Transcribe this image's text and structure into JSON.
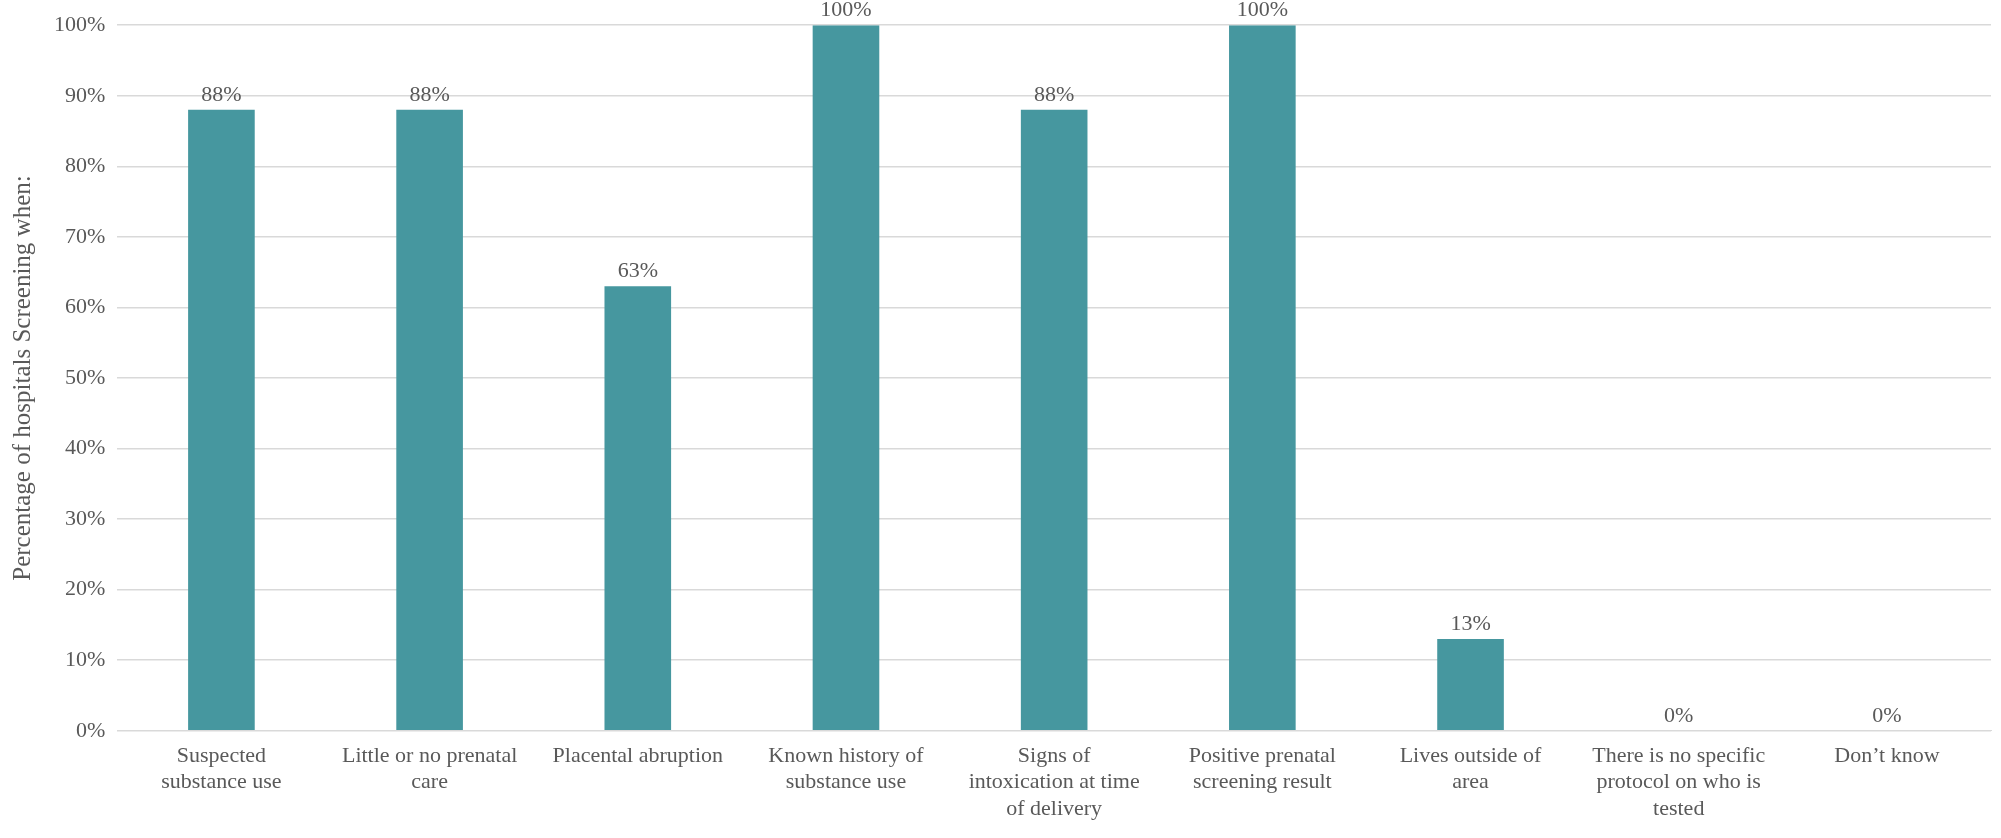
{
  "chart_data": {
    "type": "bar",
    "ylabel": "Percentage of hospitals Screening when:",
    "categories": [
      "Suspected substance use",
      "Little or no prenatal care",
      "Placental abruption",
      "Known history of substance use",
      "Signs of intoxication at time of delivery",
      "Positive prenatal screening result",
      "Lives outside of area",
      "There is no specific protocol on who is tested",
      "Don’t know"
    ],
    "values": [
      88,
      88,
      63,
      100,
      88,
      100,
      13,
      0,
      0
    ],
    "value_labels": [
      "88%",
      "88%",
      "63%",
      "100%",
      "88%",
      "100%",
      "13%",
      "0%",
      "0%"
    ],
    "color": "#46979f",
    "ylim": [
      0,
      100
    ],
    "yticks": [
      {
        "value": 0,
        "label": "0%"
      },
      {
        "value": 10,
        "label": "10%"
      },
      {
        "value": 20,
        "label": "20%"
      },
      {
        "value": 30,
        "label": "30%"
      },
      {
        "value": 40,
        "label": "40%"
      },
      {
        "value": 50,
        "label": "50%"
      },
      {
        "value": 60,
        "label": "60%"
      },
      {
        "value": 70,
        "label": "70%"
      },
      {
        "value": 80,
        "label": "80%"
      },
      {
        "value": 90,
        "label": "90%"
      },
      {
        "value": 100,
        "label": "100%"
      }
    ],
    "grid": "y",
    "legend": false
  }
}
